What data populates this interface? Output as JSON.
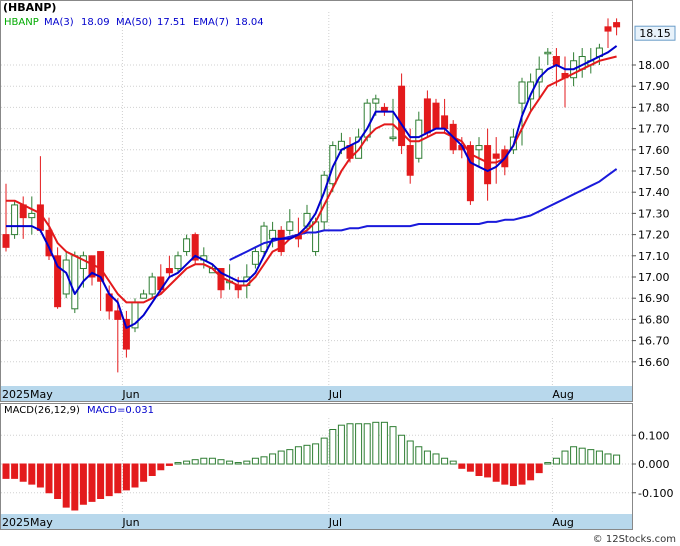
{
  "title": "(HBANP)",
  "indicators": {
    "symbol": "HBANP",
    "ma3_label": "MA(3)",
    "ma3_value": "18.09",
    "ma50_label": "MA(50)",
    "ma50_value": "17.51",
    "ema7_label": "EMA(7)",
    "ema7_value": "18.04"
  },
  "macd": {
    "label": "MACD(26,12,9)",
    "value_label": "MACD=0.031"
  },
  "last_price": "18.15",
  "watermark": "© 12Stocks.com",
  "colors": {
    "up": "#2e7d32",
    "down": "#e31a1c",
    "ma_fast": "#0000cc",
    "ema": "#e31a1c",
    "ma_slow": "#1a1adb",
    "axis_band": "#b8d8ec",
    "price_box": "#e8f2fa"
  },
  "chart_data": [
    {
      "type": "candlestick",
      "y_ticks": [
        "16.60",
        "16.70",
        "16.80",
        "16.90",
        "17.00",
        "17.10",
        "17.20",
        "17.30",
        "17.40",
        "17.50",
        "17.60",
        "17.70",
        "17.80",
        "17.90",
        "18.00"
      ],
      "ylim": [
        16.5,
        18.25
      ],
      "x_labels": [
        "2025May",
        "Jun",
        "Jul",
        "Aug"
      ],
      "x_label_index": [
        0,
        14,
        38,
        64
      ],
      "ohlc": [
        [
          17.2,
          17.44,
          17.12,
          17.14
        ],
        [
          17.2,
          17.36,
          17.18,
          17.34
        ],
        [
          17.34,
          17.38,
          17.18,
          17.28
        ],
        [
          17.28,
          17.38,
          17.2,
          17.3
        ],
        [
          17.34,
          17.57,
          17.21,
          17.22
        ],
        [
          17.22,
          17.28,
          17.08,
          17.1
        ],
        [
          17.1,
          17.14,
          16.85,
          16.86
        ],
        [
          16.92,
          17.12,
          16.9,
          17.08
        ],
        [
          16.85,
          17.12,
          16.83,
          17.1
        ],
        [
          17.04,
          17.12,
          16.95,
          17.1
        ],
        [
          17.1,
          17.1,
          16.96,
          17.0
        ],
        [
          17.12,
          17.12,
          16.84,
          16.98
        ],
        [
          16.92,
          16.96,
          16.8,
          16.84
        ],
        [
          16.84,
          16.9,
          16.55,
          16.8
        ],
        [
          16.8,
          16.84,
          16.62,
          16.66
        ],
        [
          16.76,
          16.9,
          16.74,
          16.88
        ],
        [
          16.9,
          16.94,
          16.9,
          16.92
        ],
        [
          16.92,
          17.02,
          16.9,
          17.0
        ],
        [
          17.0,
          17.06,
          16.92,
          16.94
        ],
        [
          17.04,
          17.1,
          17.0,
          17.02
        ],
        [
          17.04,
          17.12,
          17.02,
          17.1
        ],
        [
          17.12,
          17.2,
          17.1,
          17.18
        ],
        [
          17.2,
          17.21,
          17.06,
          17.08
        ],
        [
          17.08,
          17.14,
          17.04,
          17.1
        ],
        [
          17.02,
          17.06,
          17.02,
          17.04
        ],
        [
          17.04,
          17.04,
          16.9,
          16.94
        ],
        [
          16.98,
          17.06,
          16.94,
          16.98
        ],
        [
          16.96,
          17.0,
          16.9,
          16.94
        ],
        [
          16.96,
          17.06,
          16.9,
          17.0
        ],
        [
          17.06,
          17.14,
          17.04,
          17.12
        ],
        [
          17.12,
          17.26,
          17.1,
          17.24
        ],
        [
          17.18,
          17.26,
          17.14,
          17.22
        ],
        [
          17.22,
          17.24,
          17.1,
          17.12
        ],
        [
          17.22,
          17.32,
          17.2,
          17.26
        ],
        [
          17.2,
          17.28,
          17.14,
          17.18
        ],
        [
          17.24,
          17.34,
          17.22,
          17.3
        ],
        [
          17.12,
          17.28,
          17.1,
          17.26
        ],
        [
          17.26,
          17.5,
          17.22,
          17.48
        ],
        [
          17.44,
          17.64,
          17.4,
          17.62
        ],
        [
          17.6,
          17.68,
          17.58,
          17.64
        ],
        [
          17.62,
          17.66,
          17.54,
          17.56
        ],
        [
          17.56,
          17.7,
          17.56,
          17.66
        ],
        [
          17.66,
          17.84,
          17.64,
          17.82
        ],
        [
          17.82,
          17.86,
          17.76,
          17.84
        ],
        [
          17.8,
          17.82,
          17.76,
          17.78
        ],
        [
          17.66,
          17.84,
          17.64,
          17.66
        ],
        [
          17.9,
          17.96,
          17.58,
          17.62
        ],
        [
          17.62,
          17.7,
          17.44,
          17.48
        ],
        [
          17.56,
          17.78,
          17.54,
          17.74
        ],
        [
          17.84,
          17.88,
          17.66,
          17.68
        ],
        [
          17.82,
          17.84,
          17.7,
          17.7
        ],
        [
          17.76,
          17.84,
          17.68,
          17.7
        ],
        [
          17.72,
          17.74,
          17.58,
          17.6
        ],
        [
          17.62,
          17.66,
          17.56,
          17.6
        ],
        [
          17.62,
          17.64,
          17.34,
          17.36
        ],
        [
          17.6,
          17.66,
          17.52,
          17.62
        ],
        [
          17.62,
          17.7,
          17.36,
          17.44
        ],
        [
          17.58,
          17.66,
          17.44,
          17.56
        ],
        [
          17.6,
          17.62,
          17.48,
          17.52
        ],
        [
          17.6,
          17.7,
          17.58,
          17.66
        ],
        [
          17.82,
          17.94,
          17.62,
          17.92
        ],
        [
          17.84,
          17.96,
          17.78,
          17.92
        ],
        [
          17.92,
          18.04,
          17.84,
          17.98
        ],
        [
          18.06,
          18.08,
          18.0,
          18.06
        ],
        [
          18.04,
          18.08,
          17.9,
          18.0
        ],
        [
          17.96,
          18.04,
          17.8,
          17.94
        ],
        [
          17.94,
          18.06,
          17.9,
          18.02
        ],
        [
          17.98,
          18.08,
          17.94,
          18.04
        ],
        [
          18.0,
          18.08,
          17.96,
          18.02
        ],
        [
          18.04,
          18.1,
          18.0,
          18.08
        ],
        [
          18.18,
          18.22,
          18.08,
          18.16
        ],
        [
          18.2,
          18.22,
          18.14,
          18.18
        ]
      ],
      "ma3": [
        17.24,
        17.24,
        17.24,
        17.24,
        17.22,
        17.14,
        17.05,
        17.02,
        16.92,
        16.98,
        17.02,
        17.0,
        16.92,
        16.88,
        16.76,
        16.78,
        16.82,
        16.88,
        16.94,
        17.0,
        17.02,
        17.06,
        17.1,
        17.08,
        17.06,
        17.02,
        17.0,
        16.98,
        16.98,
        17.02,
        17.1,
        17.18,
        17.18,
        17.18,
        17.2,
        17.24,
        17.3,
        17.4,
        17.52,
        17.6,
        17.62,
        17.64,
        17.7,
        17.78,
        17.78,
        17.78,
        17.72,
        17.66,
        17.66,
        17.68,
        17.7,
        17.7,
        17.66,
        17.62,
        17.54,
        17.52,
        17.5,
        17.52,
        17.56,
        17.62,
        17.76,
        17.86,
        17.94,
        17.98,
        18.0,
        17.98,
        17.98,
        18.0,
        18.02,
        18.04,
        18.06,
        18.09
      ],
      "ema7": [
        17.36,
        17.36,
        17.34,
        17.32,
        17.3,
        17.24,
        17.16,
        17.12,
        17.1,
        17.08,
        17.06,
        17.04,
        16.98,
        16.92,
        16.88,
        16.88,
        16.88,
        16.9,
        16.92,
        16.96,
        17.0,
        17.04,
        17.06,
        17.06,
        17.04,
        17.0,
        16.98,
        16.96,
        16.96,
        17.0,
        17.06,
        17.12,
        17.14,
        17.18,
        17.2,
        17.22,
        17.26,
        17.34,
        17.42,
        17.5,
        17.56,
        17.6,
        17.66,
        17.7,
        17.72,
        17.72,
        17.68,
        17.64,
        17.64,
        17.66,
        17.68,
        17.68,
        17.66,
        17.64,
        17.58,
        17.56,
        17.54,
        17.54,
        17.56,
        17.62,
        17.7,
        17.78,
        17.84,
        17.9,
        17.92,
        17.94,
        17.96,
        17.98,
        18.0,
        18.02,
        18.03,
        18.04
      ],
      "ma50": [
        null,
        null,
        null,
        null,
        null,
        null,
        null,
        null,
        null,
        null,
        null,
        null,
        null,
        null,
        null,
        null,
        null,
        null,
        null,
        null,
        null,
        null,
        null,
        null,
        null,
        null,
        17.08,
        17.1,
        17.12,
        17.14,
        17.16,
        17.17,
        17.18,
        17.19,
        17.2,
        17.21,
        17.21,
        17.22,
        17.22,
        17.22,
        17.23,
        17.23,
        17.24,
        17.24,
        17.24,
        17.24,
        17.24,
        17.24,
        17.25,
        17.25,
        17.25,
        17.25,
        17.25,
        17.25,
        17.25,
        17.25,
        17.26,
        17.26,
        17.27,
        17.27,
        17.28,
        17.29,
        17.31,
        17.33,
        17.35,
        17.37,
        17.39,
        17.41,
        17.43,
        17.45,
        17.48,
        17.51
      ],
      "last_price": 18.15
    },
    {
      "type": "bar",
      "name": "MACD(26,12,9)",
      "y_ticks": [
        "0.100",
        "0.000",
        "-0.100"
      ],
      "ylim": [
        -0.16,
        0.16
      ],
      "values": [
        -0.05,
        -0.05,
        -0.06,
        -0.07,
        -0.08,
        -0.1,
        -0.12,
        -0.15,
        -0.16,
        -0.14,
        -0.13,
        -0.12,
        -0.11,
        -0.1,
        -0.09,
        -0.08,
        -0.06,
        -0.04,
        -0.02,
        -0.005,
        0.005,
        0.01,
        0.015,
        0.02,
        0.02,
        0.015,
        0.01,
        0.005,
        0.01,
        0.02,
        0.025,
        0.035,
        0.045,
        0.05,
        0.06,
        0.065,
        0.07,
        0.09,
        0.12,
        0.135,
        0.14,
        0.14,
        0.14,
        0.145,
        0.145,
        0.13,
        0.1,
        0.08,
        0.06,
        0.045,
        0.035,
        0.02,
        0.01,
        -0.015,
        -0.025,
        -0.04,
        -0.045,
        -0.06,
        -0.07,
        -0.075,
        -0.07,
        -0.055,
        -0.03,
        0.005,
        0.02,
        0.045,
        0.06,
        0.055,
        0.05,
        0.045,
        0.035,
        0.031
      ]
    }
  ]
}
